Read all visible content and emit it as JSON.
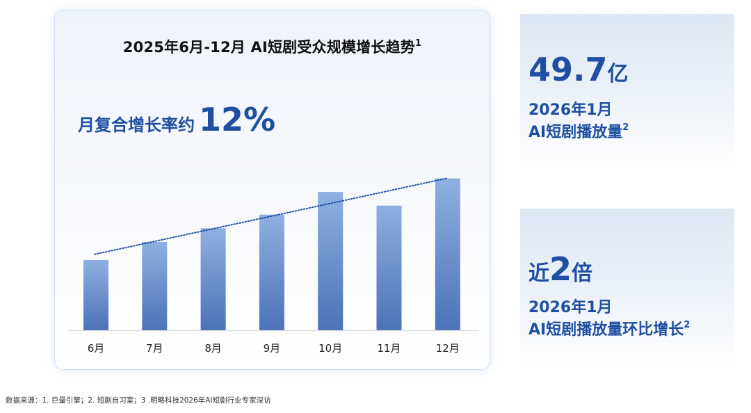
{
  "chart_card": {
    "title": "2025年6月-12月 AI短剧受众规模增长趋势",
    "title_sup": "1",
    "cagr_label": "月复合增长率约",
    "cagr_value": "12%"
  },
  "chart_data": {
    "type": "bar",
    "title": "2025年6月-12月 AI短剧受众规模增长趋势",
    "categories": [
      "6月",
      "7月",
      "8月",
      "9月",
      "10月",
      "11月",
      "12月"
    ],
    "series": [
      {
        "values": [
          31,
          39,
          45,
          51,
          61,
          55,
          67
        ]
      }
    ],
    "trendline": {
      "style": "dotted",
      "start": 33.5,
      "end": 67
    },
    "xlabel": "",
    "ylabel": "",
    "ylim": [
      0,
      100
    ],
    "grid": false,
    "colors": {
      "bar_top": "#8fb0e1",
      "bar_bottom": "#4c72b8",
      "trend": "#1f4fa2",
      "axis": "#d9d9d9"
    }
  },
  "stat_cards": [
    {
      "big": "49.7",
      "unit": "亿",
      "line1": "2026年1月",
      "line2": "AI短剧播放量",
      "line2_sup": "2"
    },
    {
      "prefix": "近",
      "big": "2",
      "unit": "倍",
      "line1": "2026年1月",
      "line2": "AI短剧播放量环比增长",
      "line2_sup": "2"
    }
  ],
  "source_note": "数据来源：1. 巨量引擎；2. 短剧自习室；3 .明略科技2026年AI短剧行业专家深访",
  "colors": {
    "accent": "#1f4fa2",
    "card_border": "#cfe0f4"
  }
}
